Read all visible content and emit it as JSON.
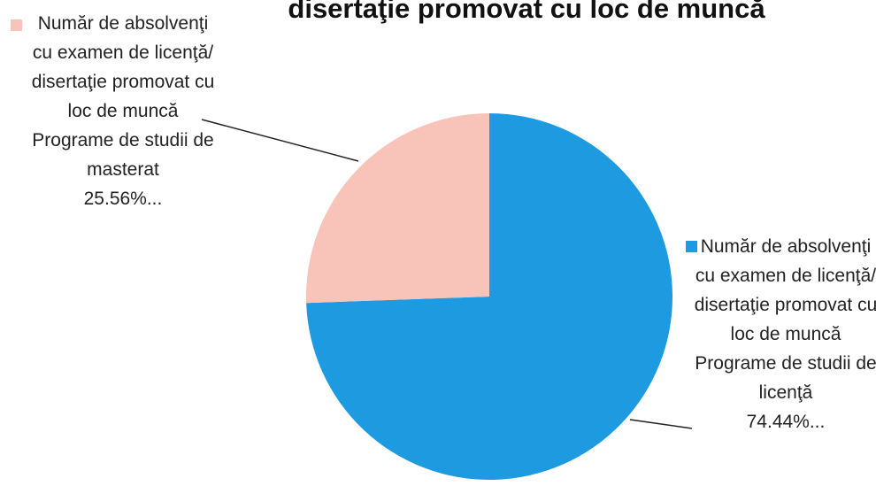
{
  "chart_data": {
    "type": "pie",
    "title": "disertaţie promovat cu loc de muncă",
    "categories": [
      "Număr de absolvenţi cu examen de licenţă/ disertaţie promovat cu loc de muncă Programe de studii de licenţă",
      "Număr de absolvenţi cu examen de licenţă/ disertaţie promovat cu loc de muncă Programe de studii de masterat"
    ],
    "values": [
      74.44,
      25.56
    ],
    "value_labels": [
      "74.44%...",
      "25.56%..."
    ],
    "colors": [
      "#1e9ae0",
      "#f8c3b9"
    ]
  }
}
